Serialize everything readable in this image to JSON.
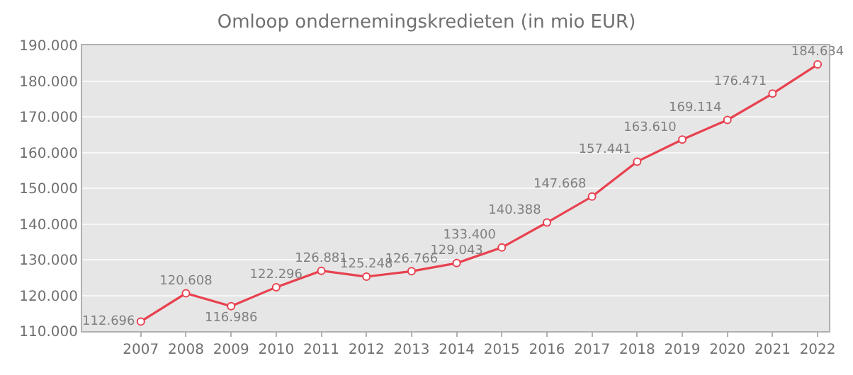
{
  "chart_data": {
    "type": "line",
    "title": "Omloop ondernemingskredieten (in mio EUR)",
    "categories": [
      "2007",
      "2008",
      "2009",
      "2010",
      "2011",
      "2012",
      "2013",
      "2014",
      "2015",
      "2016",
      "2017",
      "2018",
      "2019",
      "2020",
      "2021",
      "2022"
    ],
    "series": [
      {
        "color": "#e8414f",
        "values": [
          112696,
          120608,
          116986,
          122296,
          126881,
          125248,
          126766,
          129043,
          133400,
          140388,
          147668,
          157441,
          163610,
          169114,
          176471,
          184634
        ],
        "value_labels": [
          "112.696",
          "120.608",
          "116.986",
          "122.296",
          "126.881",
          "125.248",
          "126.766",
          "129.043",
          "133.400",
          "140.388",
          "147.668",
          "157.441",
          "163.610",
          "169.114",
          "176.471",
          "184.634"
        ]
      }
    ],
    "ylim": [
      110000,
      190000
    ],
    "yticks": [
      {
        "value": 110000,
        "label": "110.000"
      },
      {
        "value": 120000,
        "label": "120.000"
      },
      {
        "value": 130000,
        "label": "130.000"
      },
      {
        "value": 140000,
        "label": "140.000"
      },
      {
        "value": 150000,
        "label": "150.000"
      },
      {
        "value": 160000,
        "label": "160.000"
      },
      {
        "value": 170000,
        "label": "170.000"
      },
      {
        "value": 180000,
        "label": "180.000"
      },
      {
        "value": 190000,
        "label": "190.000"
      }
    ],
    "grid": "y",
    "marker": "circle",
    "line_style": "solid"
  }
}
